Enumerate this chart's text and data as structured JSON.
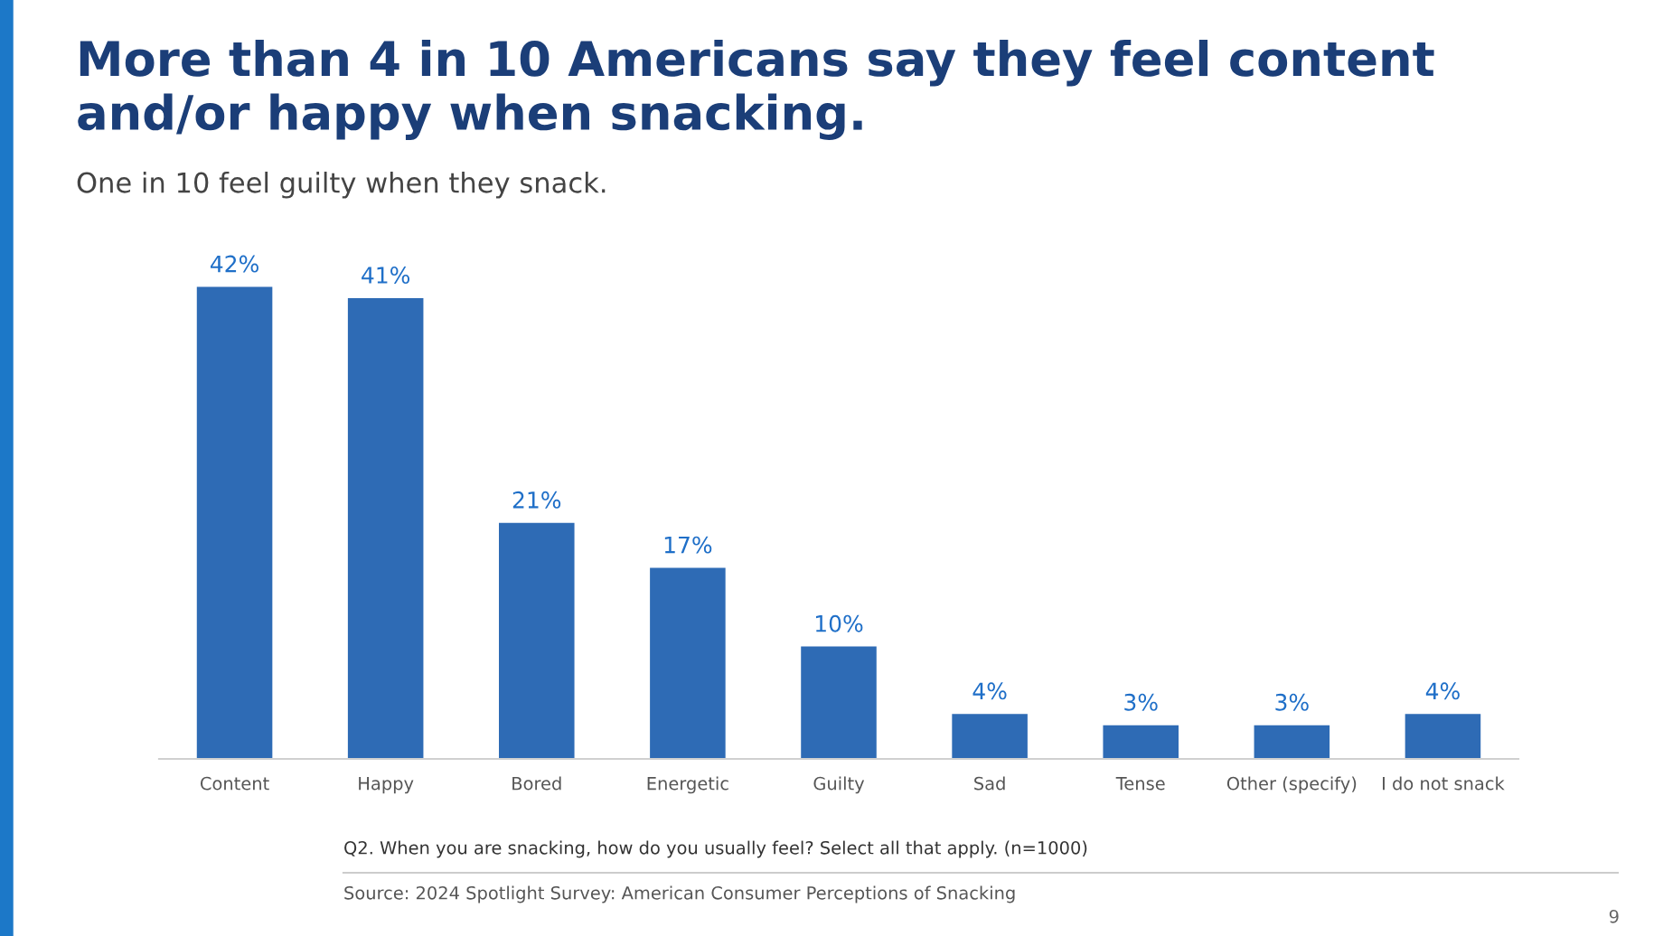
{
  "chart_data": {
    "type": "bar",
    "title": "More than 4 in 10 Americans say they feel content\nand/or happy when snacking.",
    "subtitle": "One in 10 feel guilty when they snack.",
    "categories": [
      "Content",
      "Happy",
      "Bored",
      "Energetic",
      "Guilty",
      "Sad",
      "Tense",
      "Other (specify)",
      "I do not snack"
    ],
    "values": [
      42,
      41,
      21,
      17,
      10,
      4,
      3,
      3,
      4
    ],
    "value_labels": [
      "42%",
      "41%",
      "21%",
      "17%",
      "10%",
      "4%",
      "3%",
      "3%",
      "4%"
    ],
    "color": "#2e6bb5",
    "grid": false,
    "legend": false,
    "annotations": [
      "Q2. When you are snacking, how do you usually feel? Select all that apply. (n=1000)",
      "Source: 2024 Spotlight Survey: American Consumer Perceptions of Snacking",
      "9"
    ]
  }
}
